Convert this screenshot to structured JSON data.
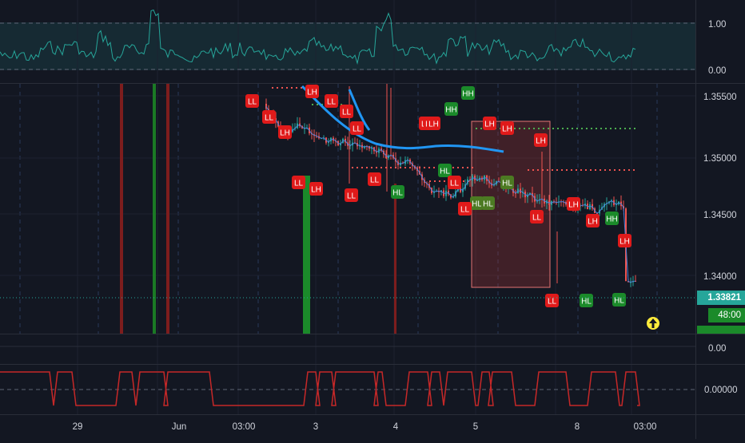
{
  "colors": {
    "background": "#131722",
    "grid": "#1e2230",
    "separator": "#2a2e39",
    "axis_text": "#d1d4dc",
    "bull": "#26a69a",
    "bear": "#ef5350",
    "label_red": "#e01a1a",
    "label_green": "#1b8a2a",
    "label_olive": "#4c7a22",
    "ma_line": "#2196f3",
    "oscillator": "#26a69a",
    "step_line": "#c62828",
    "price_tag_bg": "#26a69a",
    "timer_bg": "#1b8a2a"
  },
  "oscillator_panel": {
    "axis_labels": [
      "1.00",
      "0.00"
    ],
    "levels": [
      1.0,
      0.0
    ]
  },
  "main_panel": {
    "price_axis_labels": [
      "1.35500",
      "1.35000",
      "1.34500",
      "1.34000"
    ],
    "current_price": "1.33821",
    "countdown": "48:00",
    "alert_icon": "arrow-up-circle-icon"
  },
  "mid_panel": {
    "axis_label": "0.00"
  },
  "step_panel": {
    "axis_label": "0.00000"
  },
  "time_axis": {
    "labels": [
      "29",
      "Jun",
      "03:00",
      "3",
      "4",
      "5",
      "8",
      "03:00"
    ]
  },
  "swing_labels": [
    {
      "text": "LL",
      "kind": "red"
    },
    {
      "text": "LL",
      "kind": "red"
    },
    {
      "text": "LH",
      "kind": "red"
    },
    {
      "text": "LL",
      "kind": "red"
    },
    {
      "text": "LH",
      "kind": "red"
    },
    {
      "text": "LH",
      "kind": "red"
    },
    {
      "text": "LL",
      "kind": "red"
    },
    {
      "text": "LL",
      "kind": "red"
    },
    {
      "text": "LL",
      "kind": "red"
    },
    {
      "text": "LL",
      "kind": "red"
    },
    {
      "text": "LL",
      "kind": "red"
    },
    {
      "text": "HL",
      "kind": "green"
    },
    {
      "text": "LL",
      "kind": "red"
    },
    {
      "text": "HH",
      "kind": "green"
    },
    {
      "text": "HH",
      "kind": "green"
    },
    {
      "text": "LH",
      "kind": "red"
    },
    {
      "text": "LH",
      "kind": "red"
    },
    {
      "text": "HL",
      "kind": "green"
    },
    {
      "text": "LL",
      "kind": "red"
    },
    {
      "text": "HL",
      "kind": "olive"
    },
    {
      "text": "HL",
      "kind": "olive"
    },
    {
      "text": "LL",
      "kind": "red"
    },
    {
      "text": "LH",
      "kind": "red"
    },
    {
      "text": "LH",
      "kind": "red"
    },
    {
      "text": "LH",
      "kind": "red"
    },
    {
      "text": "HL",
      "kind": "olive"
    },
    {
      "text": "LL",
      "kind": "red"
    },
    {
      "text": "LH",
      "kind": "red"
    },
    {
      "text": "LH",
      "kind": "red"
    },
    {
      "text": "HH",
      "kind": "green"
    },
    {
      "text": "LH",
      "kind": "red"
    },
    {
      "text": "LL",
      "kind": "red"
    },
    {
      "text": "HL",
      "kind": "green"
    },
    {
      "text": "HL",
      "kind": "green"
    }
  ]
}
